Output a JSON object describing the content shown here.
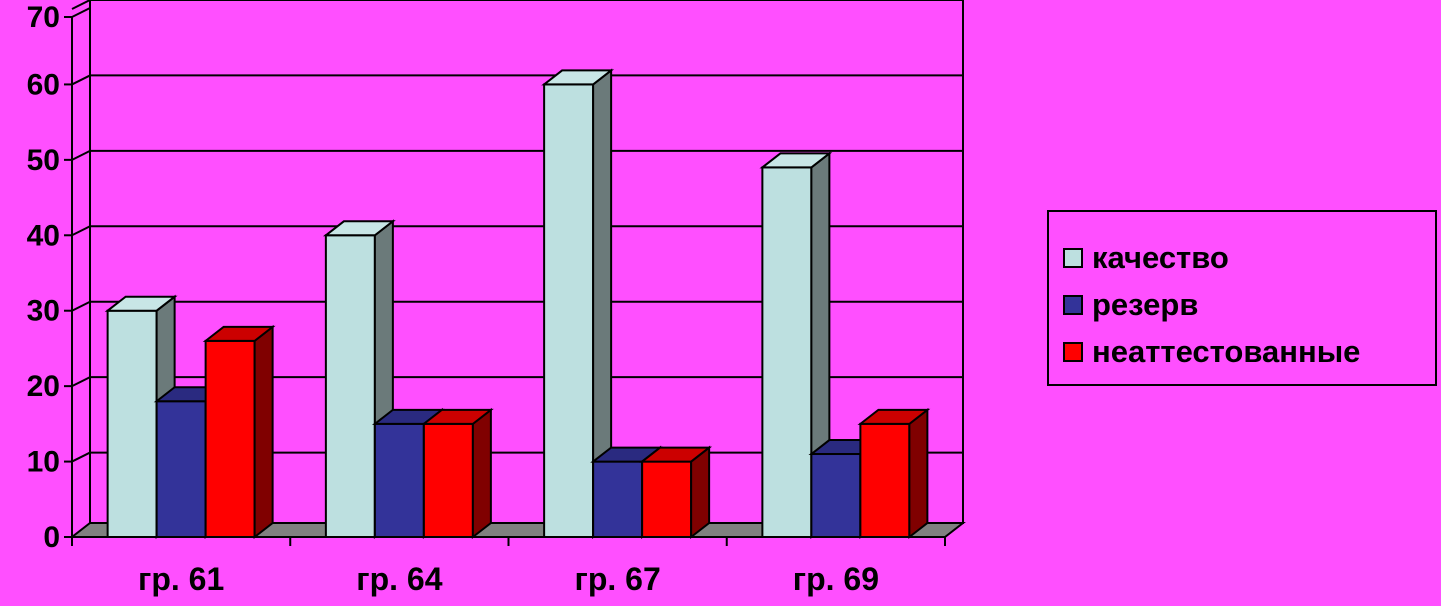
{
  "colors": {
    "background": "#FF4FFF",
    "floor": "#808080",
    "gridline": "#000000"
  },
  "chart_data": {
    "type": "bar",
    "title": "",
    "xlabel": "",
    "ylabel": "",
    "ylim": [
      0,
      70
    ],
    "yticks": [
      "0",
      "10",
      "20",
      "30",
      "40",
      "50",
      "60",
      "70"
    ],
    "grid": true,
    "legend_position": "right",
    "categories": [
      "гр. 61",
      "гр. 64",
      "гр. 67",
      "гр. 69"
    ],
    "series": [
      {
        "name": "качество",
        "values": [
          30,
          40,
          60,
          49
        ],
        "color": "#BDE0E0",
        "side_color": "#6B7A7A",
        "top_color": "#C8E6E6"
      },
      {
        "name": "резерв",
        "values": [
          18,
          15,
          10,
          11
        ],
        "color": "#333399",
        "side_color": "#1A1A4D",
        "top_color": "#2A2A80"
      },
      {
        "name": "неаттестованные",
        "values": [
          26,
          15,
          10,
          15
        ],
        "color": "#FF0000",
        "side_color": "#800000",
        "top_color": "#CC0000"
      }
    ]
  }
}
